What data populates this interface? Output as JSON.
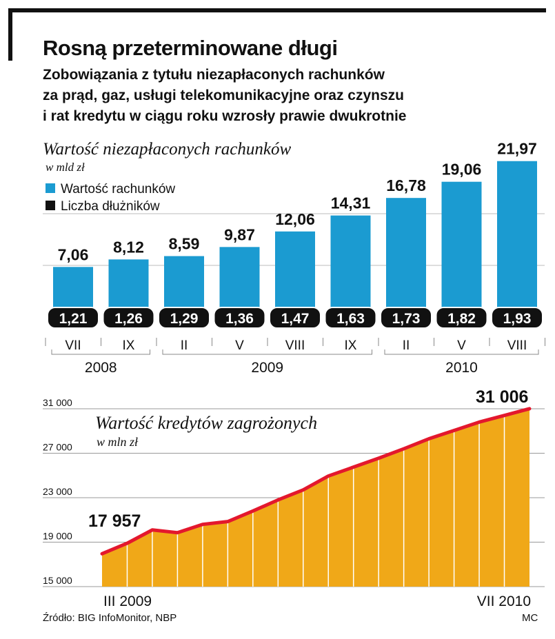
{
  "header": {
    "title": "Rosną przeterminowane długi",
    "subtitle_lines": [
      "Zobowiązania z tytułu niezapłaconych rachunków",
      "za prąd, gaz, usługi telekomunikacyjne oraz czynszu",
      "i rat kredytu w ciągu roku wzrosły prawie dwukrotnie"
    ]
  },
  "colors": {
    "bar": "#1b9bd1",
    "count_badge": "#111111",
    "area": "#f0a818",
    "line": "#e3182d"
  },
  "chart_data": [
    {
      "type": "bar",
      "title": "Wartość niezapłaconych rachunków",
      "subtitle": "w mld zł",
      "legend": [
        "Wartość rachunków",
        "Liczba dłużników"
      ],
      "legend_position": "top-left",
      "categories": [
        "VII",
        "IX",
        "II",
        "V",
        "VIII",
        "IX",
        "II",
        "V",
        "VIII"
      ],
      "year_groups": [
        {
          "label": "2008",
          "from": 0,
          "to": 1
        },
        {
          "label": "2009",
          "from": 2,
          "to": 5
        },
        {
          "label": "2010",
          "from": 6,
          "to": 8
        }
      ],
      "series": [
        {
          "name": "Wartość rachunków",
          "values": [
            7.06,
            8.12,
            8.59,
            9.87,
            12.06,
            14.31,
            16.78,
            19.06,
            21.97
          ]
        },
        {
          "name": "Liczba dłużników",
          "values": [
            1.21,
            1.26,
            1.29,
            1.36,
            1.47,
            1.63,
            1.73,
            1.82,
            1.93
          ]
        }
      ],
      "value_labels": [
        "7,06",
        "8,12",
        "8,59",
        "9,87",
        "12,06",
        "14,31",
        "16,78",
        "19,06",
        "21,97"
      ],
      "count_labels": [
        "1,21",
        "1,26",
        "1,29",
        "1,36",
        "1,47",
        "1,63",
        "1,73",
        "1,82",
        "1,93"
      ],
      "grid": true
    },
    {
      "type": "area",
      "title": "Wartość kredytów zagrożonych",
      "subtitle": "w mln zł",
      "y_ticks": [
        "31 000",
        "27 000",
        "23 000",
        "19 000",
        "15 000"
      ],
      "y_tick_values": [
        31000,
        27000,
        23000,
        19000,
        15000
      ],
      "ylim": [
        15000,
        31000
      ],
      "x_start_label": "III 2009",
      "x_end_label": "VII 2010",
      "start_label": "17 957",
      "end_label": "31 006",
      "values": [
        17957,
        18900,
        20100,
        19850,
        20600,
        20850,
        21800,
        22800,
        23700,
        24950,
        25750,
        26550,
        27400,
        28300,
        29050,
        29800,
        30400,
        31006
      ],
      "grid": true
    }
  ],
  "footer": {
    "source": "Źródło: BIG InfoMonitor, NBP",
    "credit": "MC"
  }
}
